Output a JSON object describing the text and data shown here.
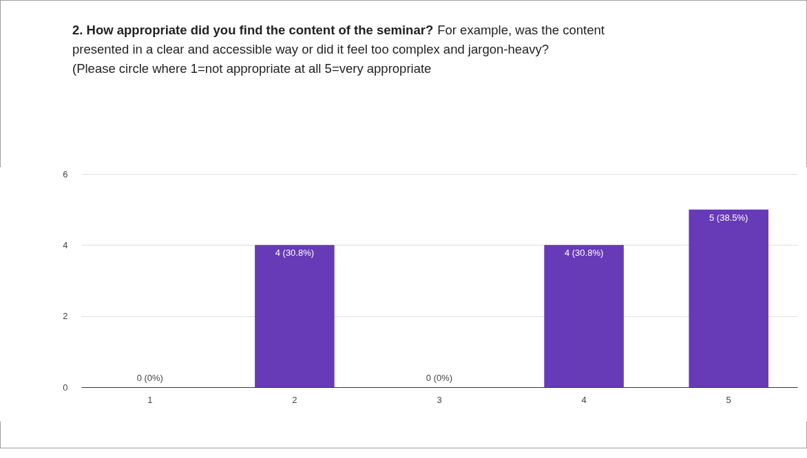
{
  "chart_data": {
    "type": "bar",
    "title": "2. How appropriate did you find the content of the seminar?",
    "subtitle": "For example, was the content presented in a clear and accessible way or did it feel too complex and jargon-heavy?",
    "annotations": [
      "(Please circle where 1=not appropriate at all  5=very appropriate"
    ],
    "categories": [
      "1",
      "2",
      "3",
      "4",
      "5"
    ],
    "values": [
      0,
      4,
      0,
      4,
      5
    ],
    "value_labels": [
      "0 (0%)",
      "4 (30.8%)",
      "0 (0%)",
      "4 (30.8%)",
      "5 (38.5%)"
    ],
    "color": "#673ab7",
    "ylim": [
      0,
      6
    ],
    "yticks": [
      0,
      2,
      4,
      6
    ],
    "grid": "y"
  }
}
